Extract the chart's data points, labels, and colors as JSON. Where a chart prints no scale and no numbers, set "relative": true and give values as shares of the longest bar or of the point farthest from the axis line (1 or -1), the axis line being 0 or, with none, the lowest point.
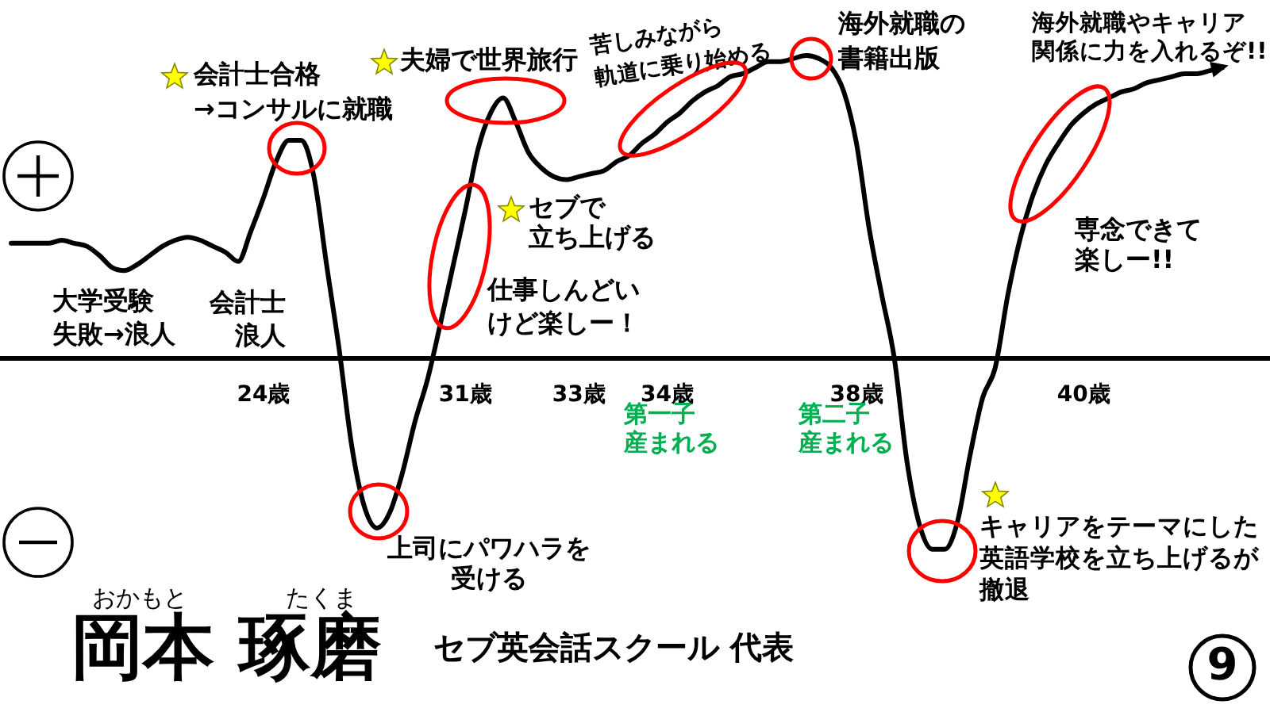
{
  "chart_data": {
    "type": "line",
    "title": "岡本 琢磨",
    "subtitle": "セブ英会話スクール 代表",
    "relative": true,
    "marker": "none",
    "line_style": "solid",
    "categories": [
      null,
      null,
      null,
      null,
      null,
      null,
      null,
      null,
      null,
      null,
      null,
      null,
      null,
      null,
      null,
      null,
      null,
      null,
      null,
      null,
      "24歳",
      null,
      null,
      null,
      null,
      null,
      null,
      null,
      null,
      null,
      null,
      null,
      null,
      null,
      null,
      null,
      "31歳",
      null,
      null,
      null,
      null,
      null,
      null,
      null,
      null,
      "33歳",
      null,
      null,
      null,
      null,
      null,
      null,
      "34歳",
      null,
      null,
      null,
      null,
      null,
      null,
      null,
      null,
      null,
      null,
      null,
      null,
      null,
      null,
      "38歳",
      null,
      null,
      null,
      null,
      null,
      null,
      null,
      null,
      null,
      null,
      null,
      null,
      null,
      null,
      null,
      null,
      null,
      "40歳",
      null,
      null,
      null,
      null,
      null,
      null,
      null,
      null,
      null,
      null,
      null
    ],
    "series": [
      {
        "color": "#000000",
        "values": [
          0.38,
          0.38,
          0.38,
          0.38,
          0.39,
          0.38,
          0.37,
          0.34,
          0.3,
          0.29,
          0.31,
          0.34,
          0.37,
          0.39,
          0.4,
          0.39,
          0.37,
          0.35,
          0.32,
          0.42,
          0.53,
          0.65,
          0.72,
          0.72,
          0.6,
          0.31,
          0.03,
          -0.29,
          -0.49,
          -0.56,
          -0.51,
          -0.38,
          -0.21,
          -0.07,
          0.11,
          0.3,
          0.49,
          0.69,
          0.81,
          0.86,
          0.78,
          0.68,
          0.63,
          0.6,
          0.59,
          0.6,
          0.61,
          0.62,
          0.65,
          0.67,
          0.71,
          0.74,
          0.78,
          0.81,
          0.85,
          0.88,
          0.9,
          0.93,
          0.94,
          0.96,
          0.98,
          0.98,
          0.99,
          1,
          0.99,
          0.96,
          0.88,
          0.71,
          0.43,
          0.21,
          0,
          -0.34,
          -0.55,
          -0.63,
          -0.63,
          -0.54,
          -0.32,
          -0.13,
          -0.03,
          0.21,
          0.4,
          0.54,
          0.64,
          0.71,
          0.77,
          0.81,
          0.84,
          0.86,
          0.88,
          0.89,
          0.91,
          0.92,
          0.93,
          0.94,
          0.94,
          0.95,
          0.96
        ]
      }
    ],
    "annotations": [
      "会計士合格→コンサルに就職",
      "夫婦で世界旅行",
      "苦しみながら軌道に乗り始める",
      "海外就職の書籍出版",
      "海外就職やキャリア関係に力を入れるぞ!!",
      "大学受験失敗→浪人",
      "会計士浪人",
      "セブで立ち上げる",
      "仕事しんどいけど楽しー！",
      "専念できて楽しー!!",
      "第一子産まれる",
      "第二子産まれる",
      "上司にパワハラを受ける",
      "キャリアをテーマにした英語学校を立ち上げるが撤退",
      "おかもと",
      "たくま",
      "9"
    ]
  }
}
